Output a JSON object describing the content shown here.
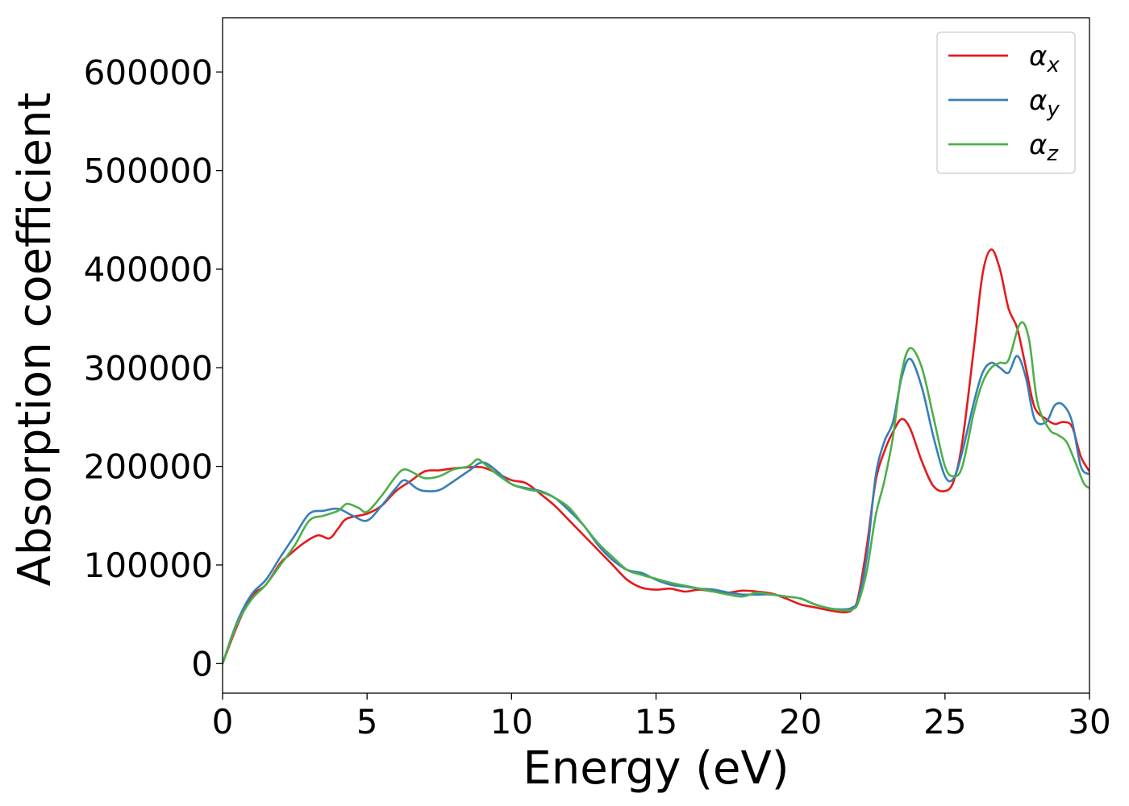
{
  "chart_data": {
    "type": "line",
    "title": "",
    "xlabel": "Energy (eV)",
    "ylabel": "Absorption coefficient",
    "xlim": [
      0,
      30
    ],
    "ylim": [
      -30000,
      655000
    ],
    "xticks": [
      0,
      5,
      10,
      15,
      20,
      25,
      30
    ],
    "yticks": [
      0,
      100000,
      200000,
      300000,
      400000,
      500000,
      600000
    ],
    "grid": false,
    "legend": {
      "position": "top-right"
    },
    "series": [
      {
        "name": "α_x",
        "legend_base": "α",
        "legend_sub": "x",
        "color": "#e41a1c",
        "x": [
          0,
          0.5,
          1,
          1.5,
          2,
          2.3,
          2.8,
          3.3,
          3.7,
          4,
          4.3,
          5,
          5.5,
          6,
          6.5,
          7,
          7.5,
          8,
          8.5,
          9,
          9.5,
          10,
          10.5,
          11,
          11.5,
          12,
          12.5,
          13,
          13.5,
          14,
          14.5,
          15,
          15.5,
          16,
          16.5,
          17,
          17.5,
          18,
          18.5,
          19,
          19.5,
          20,
          20.5,
          21,
          21.5,
          21.8,
          22,
          22.3,
          22.6,
          22.9,
          23.2,
          23.5,
          23.8,
          24.2,
          24.6,
          25,
          25.3,
          25.6,
          26,
          26.3,
          26.6,
          26.9,
          27.2,
          27.5,
          27.8,
          28.1,
          28.5,
          28.8,
          29.1,
          29.4,
          29.7,
          30
        ],
        "y": [
          0,
          38000,
          68000,
          80000,
          102000,
          110000,
          122000,
          130000,
          127000,
          137000,
          147000,
          152000,
          160000,
          175000,
          185000,
          195000,
          196000,
          198000,
          199000,
          199000,
          193000,
          186000,
          183000,
          172000,
          160000,
          145000,
          130000,
          115000,
          100000,
          85000,
          77000,
          75000,
          76000,
          73000,
          75000,
          73000,
          72000,
          74000,
          73000,
          71000,
          66000,
          60000,
          57000,
          54000,
          52000,
          55000,
          68000,
          120000,
          185000,
          215000,
          235000,
          248000,
          238000,
          205000,
          180000,
          175000,
          185000,
          225000,
          320000,
          395000,
          420000,
          400000,
          360000,
          340000,
          300000,
          260000,
          248000,
          243000,
          245000,
          240000,
          210000,
          195000
        ]
      },
      {
        "name": "α_y",
        "legend_base": "α",
        "legend_sub": "y",
        "color": "#377eb8",
        "x": [
          0,
          0.5,
          1,
          1.5,
          2,
          2.5,
          3,
          3.5,
          4,
          4.5,
          5,
          5.5,
          6,
          6.3,
          6.7,
          7,
          7.5,
          8,
          8.5,
          9,
          9.5,
          10,
          10.5,
          11,
          11.5,
          12,
          12.5,
          13,
          13.5,
          14,
          14.5,
          15,
          15.5,
          16,
          16.5,
          17,
          17.5,
          18,
          18.5,
          19,
          19.5,
          20,
          20.5,
          21,
          21.5,
          21.8,
          22,
          22.3,
          22.6,
          22.9,
          23.2,
          23.5,
          23.8,
          24.2,
          24.6,
          25,
          25.3,
          25.6,
          26,
          26.3,
          26.6,
          26.9,
          27.2,
          27.5,
          27.8,
          28.1,
          28.5,
          28.8,
          29.1,
          29.4,
          29.7,
          30
        ],
        "y": [
          0,
          42000,
          70000,
          85000,
          108000,
          130000,
          152000,
          155000,
          157000,
          150000,
          145000,
          160000,
          178000,
          186000,
          178000,
          175000,
          176000,
          185000,
          195000,
          204000,
          195000,
          182000,
          178000,
          175000,
          168000,
          155000,
          140000,
          120000,
          105000,
          95000,
          92000,
          85000,
          80000,
          78000,
          76000,
          75000,
          72000,
          70000,
          70000,
          70000,
          68000,
          66000,
          60000,
          56000,
          55000,
          57000,
          65000,
          110000,
          190000,
          225000,
          245000,
          290000,
          309000,
          280000,
          230000,
          190000,
          188000,
          215000,
          265000,
          295000,
          305000,
          300000,
          295000,
          312000,
          290000,
          248000,
          245000,
          262000,
          262000,
          245000,
          200000,
          192000
        ]
      },
      {
        "name": "α_z",
        "legend_base": "α",
        "legend_sub": "z",
        "color": "#4daf4a",
        "x": [
          0,
          0.5,
          1,
          1.5,
          2,
          2.5,
          3,
          3.5,
          4,
          4.3,
          4.7,
          5,
          5.5,
          6,
          6.3,
          6.7,
          7,
          7.5,
          8,
          8.5,
          8.8,
          9,
          9.5,
          10,
          10.5,
          11,
          11.5,
          12,
          12.5,
          13,
          13.5,
          14,
          14.5,
          15,
          15.5,
          16,
          16.5,
          17,
          17.5,
          18,
          18.5,
          19,
          19.5,
          20,
          20.5,
          21,
          21.5,
          21.8,
          22,
          22.3,
          22.6,
          22.9,
          23.2,
          23.5,
          23.8,
          24.2,
          24.6,
          25,
          25.3,
          25.6,
          26,
          26.3,
          26.6,
          26.9,
          27.2,
          27.6,
          27.9,
          28.2,
          28.6,
          28.9,
          29.2,
          29.5,
          29.8,
          30
        ],
        "y": [
          0,
          40000,
          65000,
          80000,
          100000,
          120000,
          145000,
          150000,
          155000,
          162000,
          158000,
          154000,
          170000,
          190000,
          197000,
          192000,
          188000,
          190000,
          197000,
          200000,
          207000,
          204000,
          192000,
          182000,
          177000,
          174000,
          168000,
          158000,
          140000,
          122000,
          108000,
          95000,
          90000,
          86000,
          82000,
          79000,
          76000,
          73000,
          70000,
          68000,
          72000,
          70000,
          68000,
          66000,
          60000,
          56000,
          54000,
          55000,
          62000,
          95000,
          150000,
          185000,
          230000,
          295000,
          320000,
          300000,
          250000,
          200000,
          190000,
          200000,
          255000,
          285000,
          300000,
          305000,
          308000,
          345000,
          330000,
          265000,
          238000,
          232000,
          225000,
          205000,
          183000,
          178000
        ]
      }
    ]
  }
}
